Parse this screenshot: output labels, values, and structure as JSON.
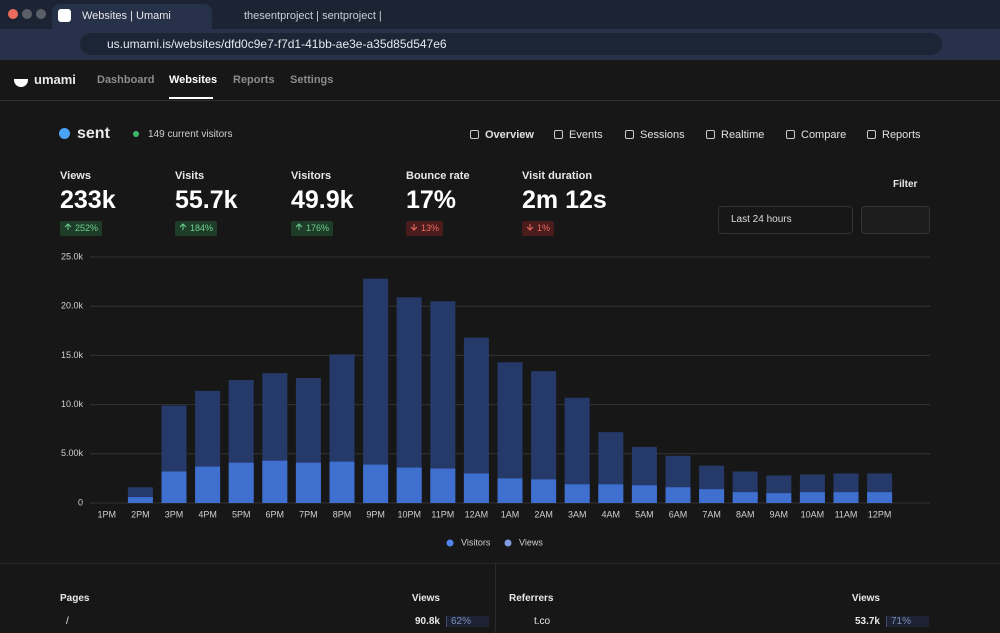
{
  "browser": {
    "tabs": [
      "Websites | Umami",
      "thesentproject | sentproject |"
    ],
    "url": "us.umami.is/websites/dfd0c9e7-f7d1-41bb-ae3e-a35d85d547e6"
  },
  "nav": {
    "brand": "umami",
    "links": [
      "Dashboard",
      "Websites",
      "Reports",
      "Settings"
    ],
    "active": 1
  },
  "site": {
    "name": "sent",
    "current_visitors": "149 current visitors"
  },
  "tabs": [
    "Overview",
    "Events",
    "Sessions",
    "Realtime",
    "Compare",
    "Reports"
  ],
  "metrics": [
    {
      "label": "Views",
      "value": "233k",
      "change": "252%",
      "trend": "up"
    },
    {
      "label": "Visits",
      "value": "55.7k",
      "change": "184%",
      "trend": "up"
    },
    {
      "label": "Visitors",
      "value": "49.9k",
      "change": "176%",
      "trend": "up"
    },
    {
      "label": "Bounce rate",
      "value": "17%",
      "change": "13%",
      "trend": "down"
    },
    {
      "label": "Visit duration",
      "value": "2m 12s",
      "change": "1%",
      "trend": "down"
    }
  ],
  "filter": "Filter",
  "date_range": "Last 24 hours",
  "chart_data": {
    "type": "bar",
    "mode": "overlay",
    "categories": [
      "1PM",
      "2PM",
      "3PM",
      "4PM",
      "5PM",
      "6PM",
      "7PM",
      "8PM",
      "9PM",
      "10PM",
      "11PM",
      "12AM",
      "1AM",
      "2AM",
      "3AM",
      "4AM",
      "5AM",
      "6AM",
      "7AM",
      "8AM",
      "9AM",
      "10AM",
      "11AM",
      "12PM"
    ],
    "series": [
      {
        "name": "Visitors",
        "color": "#3f6fcf",
        "values": [
          0,
          600,
          3200,
          3700,
          4100,
          4300,
          4100,
          4200,
          3900,
          3600,
          3500,
          3000,
          2500,
          2400,
          1900,
          1900,
          1800,
          1600,
          1400,
          1100,
          1000,
          1100,
          1100,
          1100
        ]
      },
      {
        "name": "Views",
        "color": "#263a69",
        "values": [
          0,
          1600,
          9900,
          11400,
          12500,
          13200,
          12700,
          15100,
          22800,
          20900,
          20500,
          16800,
          14300,
          13400,
          10700,
          7200,
          5700,
          4800,
          3800,
          3200,
          2800,
          2900,
          3000,
          3000
        ]
      }
    ],
    "ylim": [
      0,
      25000
    ],
    "yticks": [
      0,
      {
        "value": 5000,
        "label": "5.00k"
      },
      {
        "value": 10000,
        "label": "10.0k"
      },
      {
        "value": 15000,
        "label": "15.0k"
      },
      {
        "value": 20000,
        "label": "20.0k"
      },
      {
        "value": 25000,
        "label": "25.0k"
      }
    ],
    "grid": true
  },
  "tables": [
    {
      "title": "Pages",
      "column": "Views",
      "rows": [
        {
          "label": "/",
          "value": "90.8k",
          "percent": "62%"
        }
      ]
    },
    {
      "title": "Referrers",
      "column": "Views",
      "rows": [
        {
          "label": "t.co",
          "value": "53.7k",
          "percent": "71%"
        }
      ]
    }
  ]
}
